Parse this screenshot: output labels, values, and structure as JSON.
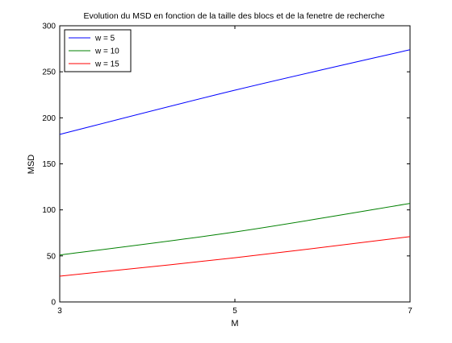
{
  "chart_data": {
    "type": "line",
    "title": "Evolution du MSD en fonction de la taille des blocs et de la fenetre de recherche",
    "xlabel": "M",
    "ylabel": "MSD",
    "xlim": [
      3,
      7
    ],
    "ylim": [
      0,
      300
    ],
    "xticks": [
      3,
      5,
      7
    ],
    "yticks": [
      0,
      50,
      100,
      150,
      200,
      250,
      300
    ],
    "grid": false,
    "legend_position": "top-left",
    "x": [
      3,
      5,
      7
    ],
    "series": [
      {
        "name": "w = 5",
        "color": "#0000ff",
        "values": [
          182,
          230,
          274
        ]
      },
      {
        "name": "w = 10",
        "color": "#008000",
        "values": [
          51,
          76,
          107
        ]
      },
      {
        "name": "w = 15",
        "color": "#ff0000",
        "values": [
          28,
          48,
          71
        ]
      }
    ]
  }
}
